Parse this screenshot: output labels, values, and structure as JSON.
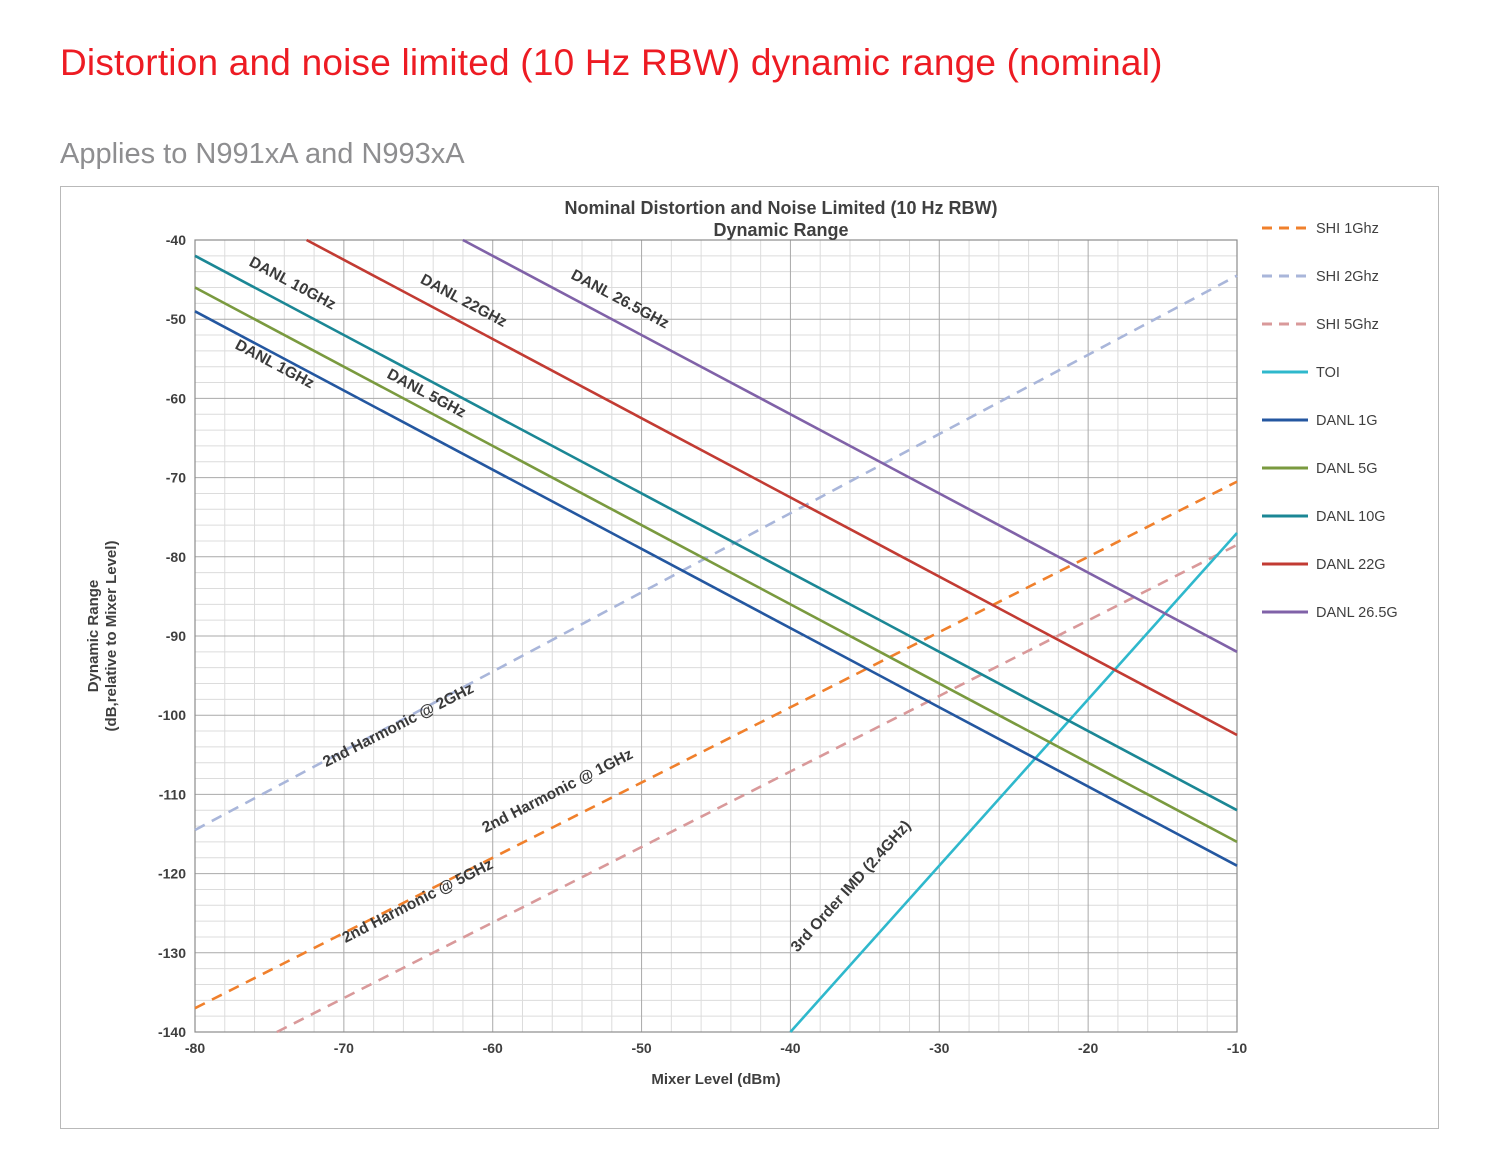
{
  "header": {
    "title": "Distortion and noise limited (10 Hz RBW) dynamic range (nominal)",
    "title_color": "#ED1B23",
    "subtitle": "Applies to N991xA and N993xA",
    "subtitle_color": "#8E8E90"
  },
  "chart_data": {
    "type": "line",
    "title_lines": [
      "Nominal Distortion and Noise Limited (10 Hz RBW)",
      "Dynamic Range"
    ],
    "xlabel": "Mixer Level (dBm)",
    "ylabel_lines": [
      "Dynamic Range",
      "(dB,relative to Mixer Level)"
    ],
    "xlim": [
      -80,
      -10
    ],
    "ylim": [
      -140,
      -40
    ],
    "x_ticks": [
      -80,
      -70,
      -60,
      -50,
      -40,
      -30,
      -20,
      -10
    ],
    "y_ticks": [
      -40,
      -50,
      -60,
      -70,
      -80,
      -90,
      -100,
      -110,
      -120,
      -130,
      -140
    ],
    "grid": {
      "on": true,
      "minor_step": 2,
      "major_color": "#A9A9A9",
      "minor_color": "#DCDCDC"
    },
    "legend_position": "right-outside",
    "series": [
      {
        "name": "SHI 2Ghz",
        "style": "dashed",
        "color": "#A9B6DA",
        "points": [
          [
            -80,
            -114.5
          ],
          [
            -10,
            -44.5
          ]
        ]
      },
      {
        "name": "SHI 1Ghz",
        "style": "dashed",
        "color": "#F0802C",
        "points": [
          [
            -80,
            -137
          ],
          [
            -10,
            -70.5
          ]
        ]
      },
      {
        "name": "SHI 5Ghz",
        "style": "dashed",
        "color": "#D9999A",
        "points": [
          [
            -74.5,
            -140
          ],
          [
            -10,
            -78.5
          ]
        ]
      },
      {
        "name": "TOI",
        "style": "solid",
        "color": "#2FB8CC",
        "points": [
          [
            -40,
            -140
          ],
          [
            -10,
            -77
          ]
        ]
      },
      {
        "name": "DANL 1G",
        "style": "solid",
        "color": "#2457A0",
        "points": [
          [
            -80,
            -49
          ],
          [
            -10,
            -119
          ]
        ]
      },
      {
        "name": "DANL 5G",
        "style": "solid",
        "color": "#7A9A3F",
        "points": [
          [
            -80,
            -46
          ],
          [
            -10,
            -116
          ]
        ]
      },
      {
        "name": "DANL 10G",
        "style": "solid",
        "color": "#1B8795",
        "points": [
          [
            -80,
            -42
          ],
          [
            -10,
            -112
          ]
        ]
      },
      {
        "name": "DANL 22G",
        "style": "solid",
        "color": "#C23B33",
        "points": [
          [
            -72.5,
            -40
          ],
          [
            -10,
            -102.5
          ]
        ]
      },
      {
        "name": "DANL 26.5G",
        "style": "solid",
        "color": "#8062A8",
        "points": [
          [
            -62,
            -40
          ],
          [
            -10,
            -92
          ]
        ]
      }
    ],
    "annotations": [
      {
        "label": "DANL 10GHz",
        "x": -73.6,
        "y": -46.0,
        "rotate": 28
      },
      {
        "label": "DANL 1GHz",
        "x": -74.8,
        "y": -56.2,
        "rotate": 28
      },
      {
        "label": "DANL 22GHz",
        "x": -62.1,
        "y": -48.2,
        "rotate": 28
      },
      {
        "label": "DANL 5GHz",
        "x": -64.6,
        "y": -59.9,
        "rotate": 28
      },
      {
        "label": "DANL 26.5GHz",
        "x": -51.6,
        "y": -48.0,
        "rotate": 28
      },
      {
        "label": "2nd Harmonic @ 2GHz",
        "x": -66.2,
        "y": -101.8,
        "rotate": -27
      },
      {
        "label": "2nd Harmonic @ 1GHz",
        "x": -55.5,
        "y": -110.1,
        "rotate": -27
      },
      {
        "label": "2nd Harmonic @ 5GHz",
        "x": -64.9,
        "y": -124.0,
        "rotate": -27
      },
      {
        "label": "3rd Order IMD (2.4GHz)",
        "x": -35.7,
        "y": -122.0,
        "rotate": -48
      }
    ],
    "legend": [
      {
        "label": "SHI 1Ghz",
        "style": "dashed",
        "color": "#F0802C"
      },
      {
        "label": "SHI 2Ghz",
        "style": "dashed",
        "color": "#A9B6DA"
      },
      {
        "label": "SHI 5Ghz",
        "style": "dashed",
        "color": "#D9999A"
      },
      {
        "label": "TOI",
        "style": "solid",
        "color": "#2FB8CC"
      },
      {
        "label": "DANL 1G",
        "style": "solid",
        "color": "#2457A0"
      },
      {
        "label": "DANL 5G",
        "style": "solid",
        "color": "#7A9A3F"
      },
      {
        "label": "DANL 10G",
        "style": "solid",
        "color": "#1B8795"
      },
      {
        "label": "DANL 22G",
        "style": "solid",
        "color": "#C23B33"
      },
      {
        "label": "DANL 26.5G",
        "style": "solid",
        "color": "#8062A8"
      }
    ]
  }
}
